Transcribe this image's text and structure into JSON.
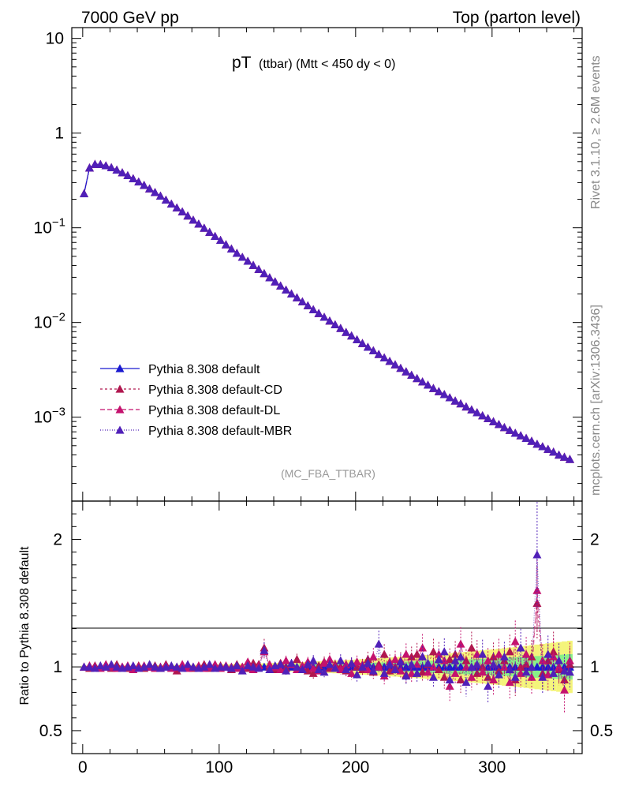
{
  "header": {
    "left": "7000 GeV pp",
    "right": "Top (parton level)"
  },
  "side_labels": {
    "rivet": "Rivet 3.1.10, ≥ 2.6M events",
    "mcplots": "mcplots.cern.ch [arXiv:1306.3436]"
  },
  "plot_title": {
    "main": "pT",
    "sub": "(ttbar) (Mtt < 450 dy < 0)"
  },
  "analysis_tag": "(MC_FBA_TTBAR)",
  "ratio_ylabel": "Ratio to Pythia 8.308 default",
  "upper_ticks": [
    {
      "value": 10,
      "base": "10",
      "exp": ""
    },
    {
      "value": 1,
      "base": "1",
      "exp": ""
    },
    {
      "value": 0.1,
      "base": "10",
      "exp": "−1"
    },
    {
      "value": 0.01,
      "base": "10",
      "exp": "−2"
    },
    {
      "value": 0.001,
      "base": "10",
      "exp": "−3"
    }
  ],
  "ratio_ticks": [
    {
      "value": 2,
      "label": "2"
    },
    {
      "value": 1,
      "label": "1"
    },
    {
      "value": 0.5,
      "label": "0.5"
    }
  ],
  "x_ticks": [
    {
      "value": 0,
      "label": "0"
    },
    {
      "value": 100,
      "label": "100"
    },
    {
      "value": 200,
      "label": "200"
    },
    {
      "value": 300,
      "label": "300"
    }
  ],
  "chart_data": {
    "type": "scatter",
    "title": "pT (ttbar) (Mtt < 450 dy < 0)",
    "xlim": [
      -8,
      366
    ],
    "ylim": [
      0.00013,
      13
    ],
    "ylog": true,
    "ratio_ylim": [
      0.32,
      2.3
    ],
    "x": [
      1,
      5,
      9,
      13,
      17,
      21,
      25,
      29,
      33,
      37,
      41,
      45,
      49,
      53,
      57,
      61,
      65,
      69,
      73,
      77,
      81,
      85,
      89,
      93,
      97,
      101,
      105,
      109,
      113,
      117,
      121,
      125,
      129,
      133,
      137,
      141,
      145,
      149,
      153,
      157,
      161,
      165,
      169,
      173,
      177,
      181,
      185,
      189,
      193,
      197,
      201,
      205,
      209,
      213,
      217,
      221,
      225,
      229,
      233,
      237,
      241,
      245,
      249,
      253,
      257,
      261,
      265,
      269,
      273,
      277,
      281,
      285,
      289,
      293,
      297,
      301,
      305,
      309,
      313,
      317,
      321,
      325,
      329,
      333,
      337,
      341,
      345,
      349,
      353,
      357
    ],
    "series": [
      {
        "name": "Pythia 8.308 default",
        "color": "#1a1ad0",
        "dash": "",
        "values": [
          0.23,
          0.43,
          0.47,
          0.468,
          0.454,
          0.433,
          0.409,
          0.383,
          0.357,
          0.331,
          0.306,
          0.282,
          0.259,
          0.237,
          0.217,
          0.197,
          0.179,
          0.163,
          0.148,
          0.134,
          0.121,
          0.11,
          0.0995,
          0.09,
          0.0815,
          0.074,
          0.0665,
          0.06,
          0.054,
          0.049,
          0.0445,
          0.0403,
          0.0365,
          0.033,
          0.0298,
          0.027,
          0.0244,
          0.0221,
          0.0201,
          0.0183,
          0.0166,
          0.0151,
          0.0137,
          0.0125,
          0.0114,
          0.0104,
          0.0095,
          0.0087,
          0.0079,
          0.00725,
          0.0066,
          0.00603,
          0.0055,
          0.00505,
          0.00462,
          0.00425,
          0.0039,
          0.00359,
          0.0033,
          0.00303,
          0.00279,
          0.00257,
          0.00237,
          0.00219,
          0.00202,
          0.00187,
          0.00174,
          0.00161,
          0.00149,
          0.00139,
          0.00129,
          0.0012,
          0.00112,
          0.00104,
          0.00097,
          0.0009,
          0.00084,
          0.00078,
          0.00073,
          0.00068,
          0.00064,
          0.0006,
          0.00056,
          0.00052,
          0.00049,
          0.00046,
          0.00043,
          0.0004,
          0.00038,
          0.00036
        ]
      },
      {
        "name": "Pythia 8.308 default-CD",
        "color": "#b0174f",
        "dash": "3,3",
        "values": [
          0.23,
          0.43,
          0.47,
          0.468,
          0.454,
          0.433,
          0.409,
          0.383,
          0.357,
          0.331,
          0.306,
          0.282,
          0.259,
          0.237,
          0.217,
          0.197,
          0.179,
          0.163,
          0.148,
          0.134,
          0.121,
          0.11,
          0.0995,
          0.09,
          0.0815,
          0.074,
          0.0665,
          0.06,
          0.054,
          0.049,
          0.0445,
          0.0403,
          0.0365,
          0.033,
          0.0298,
          0.027,
          0.0244,
          0.0221,
          0.0201,
          0.0183,
          0.0166,
          0.0151,
          0.0137,
          0.0125,
          0.0114,
          0.0104,
          0.0095,
          0.0087,
          0.0079,
          0.00725,
          0.0066,
          0.00603,
          0.0055,
          0.00505,
          0.00462,
          0.00425,
          0.0039,
          0.00359,
          0.0033,
          0.00303,
          0.00279,
          0.00257,
          0.00237,
          0.00219,
          0.00202,
          0.00187,
          0.00174,
          0.00161,
          0.00149,
          0.00139,
          0.00129,
          0.0012,
          0.00112,
          0.00104,
          0.00097,
          0.0009,
          0.00084,
          0.00078,
          0.00073,
          0.00068,
          0.00064,
          0.0006,
          0.00056,
          0.00052,
          0.00049,
          0.00046,
          0.00043,
          0.0004,
          0.00038,
          0.00036
        ]
      },
      {
        "name": "Pythia 8.308 default-DL",
        "color": "#c4126e",
        "dash": "6,3",
        "values": [
          0.23,
          0.43,
          0.47,
          0.468,
          0.454,
          0.433,
          0.409,
          0.383,
          0.357,
          0.331,
          0.306,
          0.282,
          0.259,
          0.237,
          0.217,
          0.197,
          0.179,
          0.163,
          0.148,
          0.134,
          0.121,
          0.11,
          0.0995,
          0.09,
          0.0815,
          0.074,
          0.0665,
          0.06,
          0.054,
          0.049,
          0.0445,
          0.0403,
          0.0365,
          0.033,
          0.0298,
          0.027,
          0.0244,
          0.0221,
          0.0201,
          0.0183,
          0.0166,
          0.0151,
          0.0137,
          0.0125,
          0.0114,
          0.0104,
          0.0095,
          0.0087,
          0.0079,
          0.00725,
          0.0066,
          0.00603,
          0.0055,
          0.00505,
          0.00462,
          0.00425,
          0.0039,
          0.00359,
          0.0033,
          0.00303,
          0.00279,
          0.00257,
          0.00237,
          0.00219,
          0.00202,
          0.00187,
          0.00174,
          0.00161,
          0.00149,
          0.00139,
          0.00129,
          0.0012,
          0.00112,
          0.00104,
          0.00097,
          0.0009,
          0.00084,
          0.00078,
          0.00073,
          0.00068,
          0.00064,
          0.0006,
          0.00056,
          0.00052,
          0.00049,
          0.00046,
          0.00043,
          0.0004,
          0.00038,
          0.00036
        ]
      },
      {
        "name": "Pythia 8.308 default-MBR",
        "color": "#5020b8",
        "dash": "1,2",
        "values": [
          0.23,
          0.43,
          0.47,
          0.468,
          0.454,
          0.433,
          0.409,
          0.383,
          0.357,
          0.331,
          0.306,
          0.282,
          0.259,
          0.237,
          0.217,
          0.197,
          0.179,
          0.163,
          0.148,
          0.134,
          0.121,
          0.11,
          0.0995,
          0.09,
          0.0815,
          0.074,
          0.0665,
          0.06,
          0.054,
          0.049,
          0.0445,
          0.0403,
          0.0365,
          0.033,
          0.0298,
          0.027,
          0.0244,
          0.0221,
          0.0201,
          0.0183,
          0.0166,
          0.0151,
          0.0137,
          0.0125,
          0.0114,
          0.0104,
          0.0095,
          0.0087,
          0.0079,
          0.00725,
          0.0066,
          0.00603,
          0.0055,
          0.00505,
          0.00462,
          0.00425,
          0.0039,
          0.00359,
          0.0033,
          0.00303,
          0.00279,
          0.00257,
          0.00237,
          0.00219,
          0.00202,
          0.00187,
          0.00174,
          0.00161,
          0.00149,
          0.00139,
          0.00129,
          0.0012,
          0.00112,
          0.00104,
          0.00097,
          0.0009,
          0.00084,
          0.00078,
          0.00073,
          0.00068,
          0.00064,
          0.0006,
          0.00056,
          0.00052,
          0.00049,
          0.00046,
          0.00043,
          0.0004,
          0.00038,
          0.00036
        ]
      }
    ],
    "ratios": [
      {
        "name": "Pythia 8.308 default-CD",
        "values": [
          1.0,
          0.99,
          1.01,
          1.0,
          1.0,
          0.99,
          1.02,
          1.0,
          0.99,
          1.0,
          1.01,
          0.99,
          1.0,
          1.01,
          0.99,
          1.02,
          1.0,
          0.97,
          1.01,
          1.0,
          0.99,
          1.0,
          1.02,
          0.99,
          1.0,
          1.01,
          1.0,
          0.98,
          1.02,
          1.0,
          0.99,
          1.03,
          1.02,
          1.15,
          1.0,
          0.98,
          1.03,
          0.99,
          1.02,
          1.06,
          1.0,
          0.97,
          0.95,
          1.01,
          1.04,
          0.99,
          1.02,
          1.0,
          0.97,
          1.03,
          1.0,
          0.98,
          1.06,
          0.96,
          1.02,
          1.1,
          0.97,
          1.0,
          1.05,
          0.94,
          1.08,
          1.1,
          0.96,
          1.02,
          1.12,
          0.98,
          0.92,
          1.06,
          1.1,
          0.9,
          1.05,
          1.15,
          0.95,
          1.0,
          0.92,
          1.08,
          0.97,
          1.05,
          1.12,
          0.9,
          1.0,
          1.02,
          1.08,
          1.5,
          0.95,
          1.05,
          1.12,
          0.98,
          0.9,
          1.02
        ]
      },
      {
        "name": "Pythia 8.308 default-DL",
        "values": [
          1.0,
          1.01,
          1.0,
          0.99,
          1.02,
          1.0,
          0.99,
          1.0,
          1.01,
          0.98,
          1.0,
          1.01,
          1.0,
          0.99,
          1.0,
          1.01,
          0.99,
          1.0,
          1.02,
          0.99,
          1.0,
          1.01,
          0.99,
          1.0,
          1.02,
          0.99,
          1.01,
          1.0,
          0.99,
          1.0,
          1.04,
          0.98,
          1.01,
          1.12,
          1.02,
          1.0,
          0.98,
          1.05,
          1.02,
          0.98,
          1.01,
          1.04,
          0.99,
          0.97,
          1.03,
          1.06,
          1.0,
          0.98,
          1.02,
          0.95,
          1.04,
          1.02,
          0.98,
          1.08,
          1.0,
          0.93,
          1.04,
          1.06,
          0.97,
          1.1,
          0.95,
          1.02,
          1.15,
          0.96,
          1.0,
          1.1,
          1.05,
          0.85,
          0.95,
          1.18,
          1.0,
          0.92,
          1.1,
          0.96,
          1.05,
          0.9,
          1.1,
          1.0,
          0.88,
          1.2,
          0.95,
          1.1,
          0.92,
          1.6,
          1.05,
          0.94,
          1.08,
          1.0,
          0.82,
          1.05
        ]
      },
      {
        "name": "Pythia 8.308 default-MBR",
        "values": [
          1.0,
          1.0,
          0.99,
          1.01,
          1.0,
          1.02,
          1.0,
          0.99,
          1.0,
          1.01,
          0.99,
          1.0,
          1.02,
          1.0,
          0.99,
          1.0,
          1.01,
          1.0,
          0.99,
          1.02,
          1.0,
          0.99,
          1.0,
          1.02,
          0.99,
          1.0,
          1.0,
          0.99,
          1.01,
          0.97,
          1.01,
          1.0,
          0.99,
          1.13,
          0.98,
          1.01,
          1.02,
          0.97,
          1.03,
          1.0,
          0.98,
          1.02,
          1.05,
          0.98,
          0.96,
          1.02,
          0.99,
          1.05,
          0.98,
          1.03,
          0.94,
          1.0,
          1.03,
          0.97,
          1.18,
          0.95,
          1.02,
          0.98,
          1.04,
          0.93,
          1.02,
          0.95,
          1.08,
          1.03,
          0.92,
          1.06,
          1.12,
          0.9,
          1.05,
          1.08,
          0.88,
          1.0,
          1.02,
          1.1,
          0.85,
          1.02,
          0.94,
          1.08,
          0.98,
          0.92,
          1.15,
          0.96,
          1.0,
          1.88,
          0.92,
          1.1,
          0.95,
          1.05,
          0.97,
          0.96
        ]
      }
    ],
    "band_inner": [
      0.005,
      0.005,
      0.005,
      0.005,
      0.005,
      0.005,
      0.005,
      0.005,
      0.005,
      0.006,
      0.006,
      0.006,
      0.006,
      0.006,
      0.007,
      0.007,
      0.007,
      0.007,
      0.008,
      0.008,
      0.008,
      0.009,
      0.009,
      0.009,
      0.01,
      0.01,
      0.011,
      0.011,
      0.012,
      0.012,
      0.013,
      0.013,
      0.014,
      0.014,
      0.015,
      0.015,
      0.016,
      0.016,
      0.017,
      0.018,
      0.018,
      0.019,
      0.02,
      0.021,
      0.022,
      0.023,
      0.024,
      0.025,
      0.026,
      0.027,
      0.028,
      0.03,
      0.031,
      0.032,
      0.034,
      0.035,
      0.036,
      0.038,
      0.039,
      0.041,
      0.042,
      0.044,
      0.045,
      0.047,
      0.048,
      0.05,
      0.052,
      0.053,
      0.055,
      0.057,
      0.059,
      0.06,
      0.062,
      0.064,
      0.066,
      0.068,
      0.07,
      0.072,
      0.074,
      0.076,
      0.078,
      0.08,
      0.083,
      0.085,
      0.087,
      0.09,
      0.092,
      0.095,
      0.097,
      0.1
    ],
    "band_outer": [
      0.01,
      0.01,
      0.01,
      0.01,
      0.01,
      0.01,
      0.011,
      0.011,
      0.011,
      0.012,
      0.012,
      0.012,
      0.013,
      0.013,
      0.013,
      0.014,
      0.014,
      0.015,
      0.015,
      0.016,
      0.016,
      0.017,
      0.018,
      0.018,
      0.019,
      0.02,
      0.021,
      0.022,
      0.023,
      0.024,
      0.025,
      0.026,
      0.027,
      0.028,
      0.03,
      0.031,
      0.032,
      0.034,
      0.035,
      0.037,
      0.038,
      0.04,
      0.042,
      0.044,
      0.046,
      0.048,
      0.05,
      0.052,
      0.054,
      0.056,
      0.058,
      0.061,
      0.063,
      0.066,
      0.068,
      0.071,
      0.074,
      0.076,
      0.079,
      0.082,
      0.085,
      0.088,
      0.091,
      0.094,
      0.097,
      0.1,
      0.104,
      0.107,
      0.111,
      0.114,
      0.118,
      0.122,
      0.126,
      0.13,
      0.134,
      0.138,
      0.142,
      0.147,
      0.151,
      0.156,
      0.16,
      0.165,
      0.17,
      0.175,
      0.18,
      0.185,
      0.19,
      0.195,
      0.2,
      0.205
    ]
  },
  "colors": {
    "band_inner": "#88f088",
    "band_outer": "#f4f47a",
    "axis": "#000000"
  }
}
